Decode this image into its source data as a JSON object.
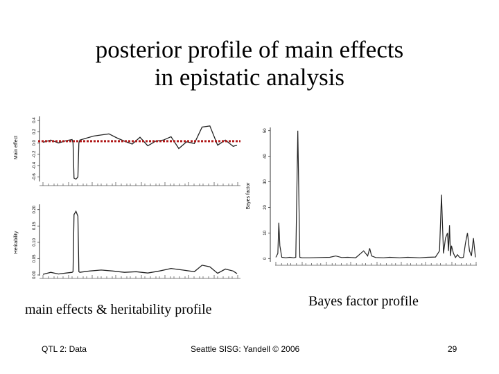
{
  "slide": {
    "title_line1": "posterior profile of main effects",
    "title_line2": "in epistatic analysis",
    "caption_left": "main effects & heritability profile",
    "caption_right": "Bayes factor profile",
    "footer_left": "QTL 2: Data",
    "footer_center": "Seattle SISG: Yandell © 2006",
    "page_number": "29"
  },
  "colors": {
    "trace": "#222222",
    "reference_line": "#b01818",
    "axis": "#333333"
  },
  "chart_data": [
    {
      "type": "line",
      "ylabel": "Main effect",
      "yticks": [
        "-0.6",
        "-0.4",
        "-0.2",
        "0.0",
        "0.2",
        "0.4"
      ],
      "ylim": [
        -0.68,
        0.42
      ],
      "reference_line": 0.03,
      "x": [
        0,
        4,
        8,
        12,
        15,
        15.5,
        16,
        17,
        18,
        18.5,
        19,
        22,
        26,
        30,
        34,
        38,
        42,
        46,
        50,
        54,
        58,
        62,
        66,
        70,
        74,
        78,
        82,
        86,
        90,
        94,
        98,
        100
      ],
      "values": [
        0.01,
        0.05,
        0.0,
        0.04,
        0.06,
        0.0,
        -0.62,
        -0.64,
        -0.6,
        0.0,
        0.05,
        0.08,
        0.12,
        0.14,
        0.16,
        0.09,
        0.03,
        -0.02,
        0.1,
        -0.05,
        0.03,
        0.05,
        0.11,
        -0.1,
        0.02,
        -0.01,
        0.28,
        0.3,
        -0.04,
        0.05,
        -0.06,
        -0.04
      ]
    },
    {
      "type": "line",
      "ylabel": "Heritability",
      "yticks": [
        "0.00",
        "0.05",
        "0.10",
        "0.15",
        "0.20"
      ],
      "ylim": [
        0,
        0.21
      ],
      "x": [
        0,
        4,
        8,
        12,
        15,
        15.5,
        16,
        17,
        18,
        18.5,
        19,
        24,
        30,
        36,
        42,
        48,
        54,
        60,
        66,
        72,
        78,
        82,
        86,
        90,
        94,
        98,
        100
      ],
      "values": [
        0.002,
        0.008,
        0.003,
        0.006,
        0.008,
        0.01,
        0.185,
        0.195,
        0.18,
        0.01,
        0.008,
        0.012,
        0.015,
        0.012,
        0.008,
        0.01,
        0.006,
        0.012,
        0.02,
        0.015,
        0.01,
        0.03,
        0.025,
        0.005,
        0.018,
        0.012,
        0.004
      ]
    },
    {
      "type": "line",
      "ylabel": "Bayes factor",
      "yticks": [
        "0",
        "10",
        "20",
        "30",
        "40",
        "50"
      ],
      "ylim": [
        -1,
        51
      ],
      "x": [
        0,
        1,
        1.5,
        2,
        3,
        5,
        7,
        9,
        10,
        11,
        12,
        13,
        17,
        22,
        27,
        30,
        33,
        36,
        40,
        44,
        46,
        47,
        48,
        50,
        54,
        57,
        62,
        66,
        72,
        76,
        80,
        82,
        83,
        84,
        85,
        86,
        86.5,
        87,
        87.5,
        88,
        89,
        90,
        91,
        92,
        93,
        94,
        95,
        96,
        97,
        98,
        99,
        100
      ],
      "values": [
        0.5,
        2,
        14,
        5,
        0.5,
        0.3,
        0.5,
        0.3,
        0.5,
        50,
        0.5,
        0.3,
        0.3,
        0.4,
        0.5,
        1,
        0.4,
        0.5,
        0.3,
        3,
        1,
        4,
        1,
        0.4,
        0.3,
        0.5,
        0.3,
        0.5,
        0.3,
        0.5,
        0.6,
        3,
        25,
        2,
        8,
        10,
        3,
        13,
        1,
        5,
        2,
        0.4,
        1.5,
        0.5,
        0.3,
        0.5,
        6,
        10,
        3,
        1,
        8,
        0.5
      ]
    }
  ]
}
